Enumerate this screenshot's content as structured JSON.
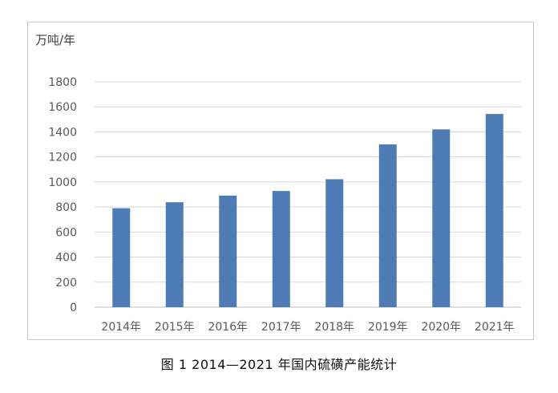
{
  "chart_data": {
    "type": "bar",
    "title": "",
    "xlabel": "",
    "ylabel": "万吨/年",
    "categories": [
      "2014年",
      "2015年",
      "2016年",
      "2017年",
      "2018年",
      "2019年",
      "2020年",
      "2021年"
    ],
    "values": [
      790,
      838,
      891,
      928,
      1022,
      1300,
      1420,
      1543
    ],
    "ylim": [
      0,
      1800
    ],
    "yticks": [
      0,
      200,
      400,
      600,
      800,
      1000,
      1200,
      1400,
      1600,
      1800
    ],
    "grid": true,
    "legend": "none",
    "colors": {
      "bar": "#4f7bb4",
      "grid": "#d9d9d9",
      "text": "#595959"
    }
  },
  "caption": "图 1 2014—2021 年国内硫磺产能统计"
}
